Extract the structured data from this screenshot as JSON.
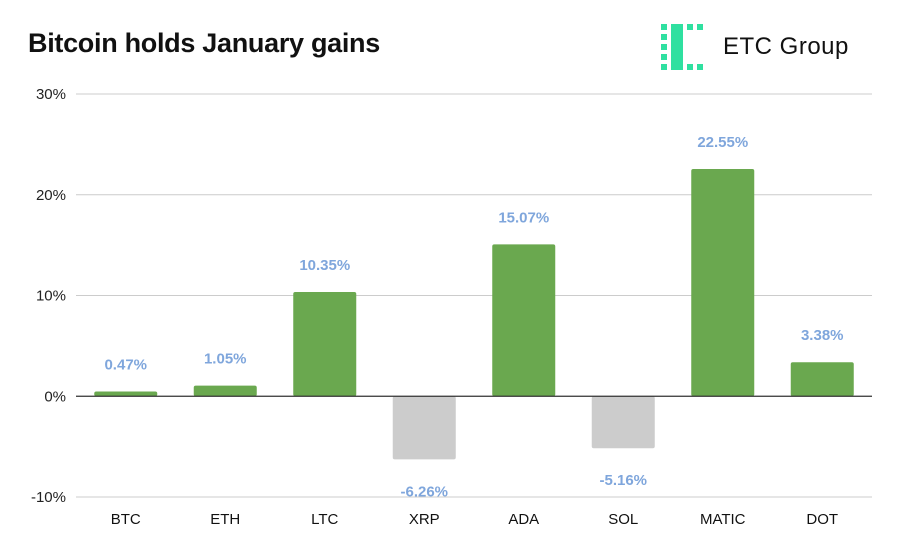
{
  "header": {
    "title": "Bitcoin holds January gains",
    "brand_name": "ETC Group",
    "brand_logo": "etc-group-logo-icon",
    "brand_color": "#2fe0a0"
  },
  "chart_data": {
    "type": "bar",
    "title": "Bitcoin holds January gains",
    "xlabel": "",
    "ylabel": "",
    "categories": [
      "BTC",
      "ETH",
      "LTC",
      "XRP",
      "ADA",
      "SOL",
      "MATIC",
      "DOT"
    ],
    "values": [
      0.47,
      1.05,
      10.35,
      -6.26,
      15.07,
      -5.16,
      22.55,
      3.38
    ],
    "data_labels": [
      "0.47%",
      "1.05%",
      "10.35%",
      "-6.26%",
      "15.07%",
      "-5.16%",
      "22.55%",
      "3.38%"
    ],
    "ylim": [
      -10,
      30
    ],
    "yticks": [
      30,
      20,
      10,
      0,
      -10
    ],
    "ytick_labels": [
      "30%",
      "20%",
      "10%",
      "0%",
      "-10%"
    ],
    "grid": true,
    "legend": "none",
    "colors": {
      "positive": "#6aa84f",
      "negative": "#cccccc",
      "data_label": "#7fa6dc",
      "grid": "#cccccc",
      "zero_line": "#333333"
    }
  }
}
